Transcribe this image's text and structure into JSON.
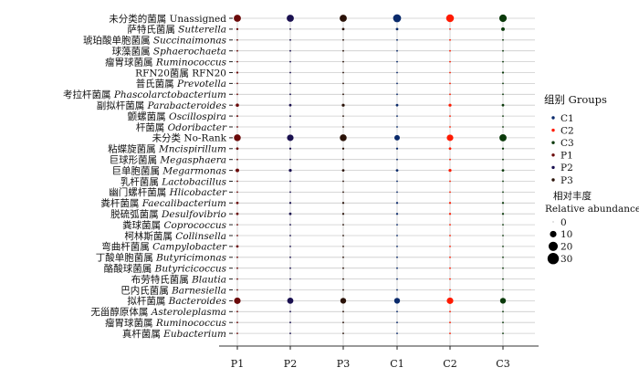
{
  "chart_data": {
    "type": "bubble-matrix",
    "xlabel": "",
    "ylabel": "",
    "categories": [
      "P1",
      "P2",
      "P3",
      "C1",
      "C2",
      "C3"
    ],
    "rows": [
      {
        "zh": "未分类的菌属",
        "lat": "Unassigned",
        "italic": false,
        "values": [
          12,
          12,
          12,
          15,
          14,
          13
        ]
      },
      {
        "zh": "萨特氏菌属",
        "lat": "Sutterella",
        "italic": true,
        "values": [
          1,
          0.5,
          1.5,
          1.5,
          0.5,
          3
        ]
      },
      {
        "zh": "琥珀酸单胞菌属",
        "lat": "Succinaimonas",
        "italic": true,
        "values": [
          0.3,
          0.2,
          0.3,
          0.3,
          0.2,
          0.3
        ]
      },
      {
        "zh": "球藻菌属",
        "lat": "Sphaerochaeta",
        "italic": true,
        "values": [
          0.2,
          0.1,
          0.2,
          0.1,
          0.1,
          0.1
        ]
      },
      {
        "zh": "瘤胃球菌属",
        "lat": "Ruminococcus",
        "italic": true,
        "values": [
          0.5,
          0.2,
          0.3,
          0.2,
          0.2,
          0.2
        ]
      },
      {
        "zh": "RFN20菌属",
        "lat": "RFN20",
        "italic": false,
        "values": [
          1,
          0.5,
          0.5,
          0.3,
          0.3,
          1
        ]
      },
      {
        "zh": "普氏菌属",
        "lat": "Prevotella",
        "italic": true,
        "values": [
          0.3,
          0.2,
          0.2,
          0.2,
          0.2,
          0.2
        ]
      },
      {
        "zh": "考拉杆菌属",
        "lat": "Phascolarctobacterium",
        "italic": true,
        "values": [
          0.5,
          0.2,
          0.2,
          0.2,
          0.3,
          0.5
        ]
      },
      {
        "zh": "副拟杆菌属",
        "lat": "Parabacteroides",
        "italic": true,
        "values": [
          2.5,
          1.5,
          2,
          1.5,
          2,
          1.5
        ]
      },
      {
        "zh": "颤螺菌属",
        "lat": "Oscillospira",
        "italic": true,
        "values": [
          0.8,
          0.5,
          0.5,
          0.3,
          0.3,
          0.5
        ]
      },
      {
        "zh": "杆菌属",
        "lat": "Odoribacter",
        "italic": true,
        "values": [
          0.5,
          0.3,
          0.3,
          0.2,
          0.2,
          0.3
        ]
      },
      {
        "zh": "未分类",
        "lat": "No-Rank",
        "italic": false,
        "values": [
          11,
          10,
          11,
          7,
          10,
          12
        ]
      },
      {
        "zh": "粘蝶旋菌属",
        "lat": "Mncispirillum",
        "italic": true,
        "values": [
          1.5,
          1,
          1,
          1,
          1.5,
          1
        ]
      },
      {
        "zh": "巨球形菌属",
        "lat": "Megasphaera",
        "italic": true,
        "values": [
          0.5,
          0.3,
          0.5,
          0.3,
          0.5,
          0.3
        ]
      },
      {
        "zh": "巨单胞菌属",
        "lat": "Megarmonas",
        "italic": true,
        "values": [
          3,
          2,
          1.5,
          1.5,
          2,
          1.5
        ]
      },
      {
        "zh": "乳杆菌属",
        "lat": "Lactobacillus",
        "italic": true,
        "values": [
          0.5,
          0.3,
          0.5,
          0.3,
          0.3,
          0.3
        ]
      },
      {
        "zh": "幽门螺杆菌属",
        "lat": "Hlicobacter",
        "italic": true,
        "values": [
          0.3,
          0.2,
          0.3,
          0.2,
          0.2,
          0.2
        ]
      },
      {
        "zh": "粪杆菌属",
        "lat": "Faecalibacterium",
        "italic": true,
        "values": [
          1.5,
          1,
          1,
          1,
          1,
          1
        ]
      },
      {
        "zh": "脱硫弧菌属",
        "lat": "Desulfovibrio",
        "italic": true,
        "values": [
          1.5,
          1.5,
          1,
          1,
          1,
          1
        ]
      },
      {
        "zh": "粪球菌属",
        "lat": "Coprococcus",
        "italic": true,
        "values": [
          0.3,
          0.2,
          0.2,
          0.2,
          0.2,
          0.2
        ]
      },
      {
        "zh": "柯林斯菌属",
        "lat": "Collinsella",
        "italic": true,
        "values": [
          0.3,
          0.2,
          0.2,
          0.2,
          0.2,
          0.2
        ]
      },
      {
        "zh": "弯曲杆菌属",
        "lat": "Campylobacter",
        "italic": true,
        "values": [
          1.5,
          0.3,
          0.3,
          0.2,
          0.3,
          0.3
        ]
      },
      {
        "zh": "丁酸单胞菌属",
        "lat": "Butyricimonas",
        "italic": true,
        "values": [
          0.3,
          0.2,
          0.2,
          0.2,
          0.2,
          0.2
        ]
      },
      {
        "zh": "酪酸球菌属",
        "lat": "Butyricicoccus",
        "italic": true,
        "values": [
          0.3,
          0.2,
          0.2,
          0.2,
          0.2,
          0.2
        ]
      },
      {
        "zh": "布劳特氏菌属",
        "lat": "Blautia",
        "italic": true,
        "values": [
          0.3,
          0.2,
          0.2,
          0.2,
          0.2,
          0.2
        ]
      },
      {
        "zh": "巴内氏菌属",
        "lat": "Barnesiella",
        "italic": true,
        "values": [
          0.3,
          0.2,
          0.2,
          0.2,
          0.2,
          0.2
        ]
      },
      {
        "zh": "拟杆菌属",
        "lat": "Bacteroides",
        "italic": true,
        "values": [
          10,
          9,
          8,
          8,
          10,
          8
        ]
      },
      {
        "zh": "无甾醇原体属",
        "lat": "Asteroleplasma",
        "italic": true,
        "values": [
          0.3,
          0.2,
          0.2,
          0.2,
          0.2,
          0.2
        ]
      },
      {
        "zh": "瘤胃球菌属",
        "lat": "Ruminococcus",
        "italic": true,
        "values": [
          0.3,
          0.2,
          0.2,
          0.2,
          0.2,
          0.2
        ]
      },
      {
        "zh": "真杆菌属",
        "lat": "Eubacterium",
        "italic": true,
        "values": [
          0.3,
          0.2,
          0.2,
          0.2,
          0.2,
          0.2
        ]
      }
    ],
    "legend_groups": {
      "title": "组别  Groups",
      "items": [
        {
          "label": "C1",
          "color": "#0a2a6b"
        },
        {
          "label": "C2",
          "color": "#ff1a00"
        },
        {
          "label": "C3",
          "color": "#0b3a0b"
        },
        {
          "label": "P1",
          "color": "#6b0a0a"
        },
        {
          "label": "P2",
          "color": "#1a1050"
        },
        {
          "label": "P3",
          "color": "#2a1208"
        }
      ]
    },
    "legend_size": {
      "title": "相对丰度",
      "subtitle": "Relative abundance/%",
      "items": [
        0,
        10,
        20,
        30
      ]
    },
    "max_value": 30,
    "grid": true
  }
}
